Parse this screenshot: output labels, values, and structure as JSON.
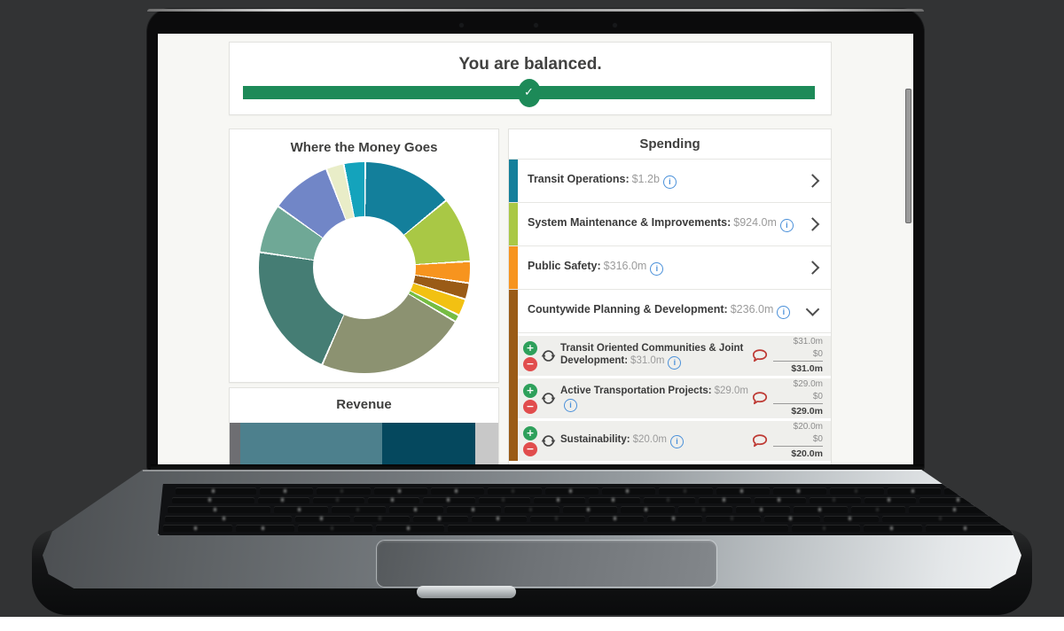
{
  "app": {
    "balance": {
      "title": "You are balanced.",
      "bar_color": "#1D8A58"
    },
    "panels": {
      "money_goes": {
        "title": "Where the Money Goes"
      },
      "revenue": {
        "title": "Revenue"
      },
      "spending": {
        "title": "Spending"
      }
    },
    "spending_items": [
      {
        "label": "Transit Operations:",
        "amount": "$1.2b",
        "color": "#137F9B"
      },
      {
        "label": "System Maintenance & Improvements:",
        "amount": "$924.0m",
        "color": "#A9C845"
      },
      {
        "label": "Public Safety:",
        "amount": "$316.0m",
        "color": "#F7941E"
      },
      {
        "label": "Countywide Planning & Development:",
        "amount": "$236.0m",
        "color": "#9A5B16"
      }
    ],
    "spending_subitems": [
      {
        "label": "Transit Oriented Communities & Joint Development:",
        "amount": "$31.0m",
        "base": "$31.0m",
        "change": "$0",
        "total": "$31.0m"
      },
      {
        "label": "Active Transportation Projects:",
        "amount": "$29.0m",
        "base": "$29.0m",
        "change": "$0",
        "total": "$29.0m"
      },
      {
        "label": "Sustainability:",
        "amount": "$20.0m",
        "base": "$20.0m",
        "change": "$0",
        "total": "$20.0m"
      }
    ],
    "icons": {
      "check": "✓",
      "plus": "+",
      "minus": "−",
      "info": "i"
    }
  },
  "chart_data": [
    {
      "type": "pie",
      "subtype": "donut",
      "title": "Where the Money Goes",
      "legend": "none",
      "inner_radius_pct": 49,
      "slices": [
        {
          "percent": 13.9,
          "color": "#137F9B"
        },
        {
          "percent": 10.0,
          "color": "#A9C845"
        },
        {
          "percent": 3.3,
          "color": "#F7941E"
        },
        {
          "percent": 2.5,
          "color": "#9A5B16"
        },
        {
          "percent": 2.6,
          "color": "#F2C112"
        },
        {
          "percent": 1.1,
          "color": "#76BC43"
        },
        {
          "percent": 23.0,
          "color": "#8C9271"
        },
        {
          "percent": 20.8,
          "color": "#457D74"
        },
        {
          "percent": 7.5,
          "color": "#6FA896"
        },
        {
          "percent": 9.3,
          "color": "#7186C7"
        },
        {
          "percent": 2.7,
          "color": "#E9EDC8"
        },
        {
          "percent": 3.3,
          "color": "#14A3BC"
        }
      ]
    },
    {
      "type": "bar",
      "subtype": "stacked-horizontal",
      "title": "Revenue",
      "legend": "none",
      "segments": [
        {
          "percent": 3.9,
          "color": "#6E6E72"
        },
        {
          "percent": 52.8,
          "color": "#4D808D"
        },
        {
          "percent": 34.8,
          "color": "#05485E"
        },
        {
          "percent": 8.5,
          "color": "#C8C8C8"
        }
      ]
    }
  ]
}
